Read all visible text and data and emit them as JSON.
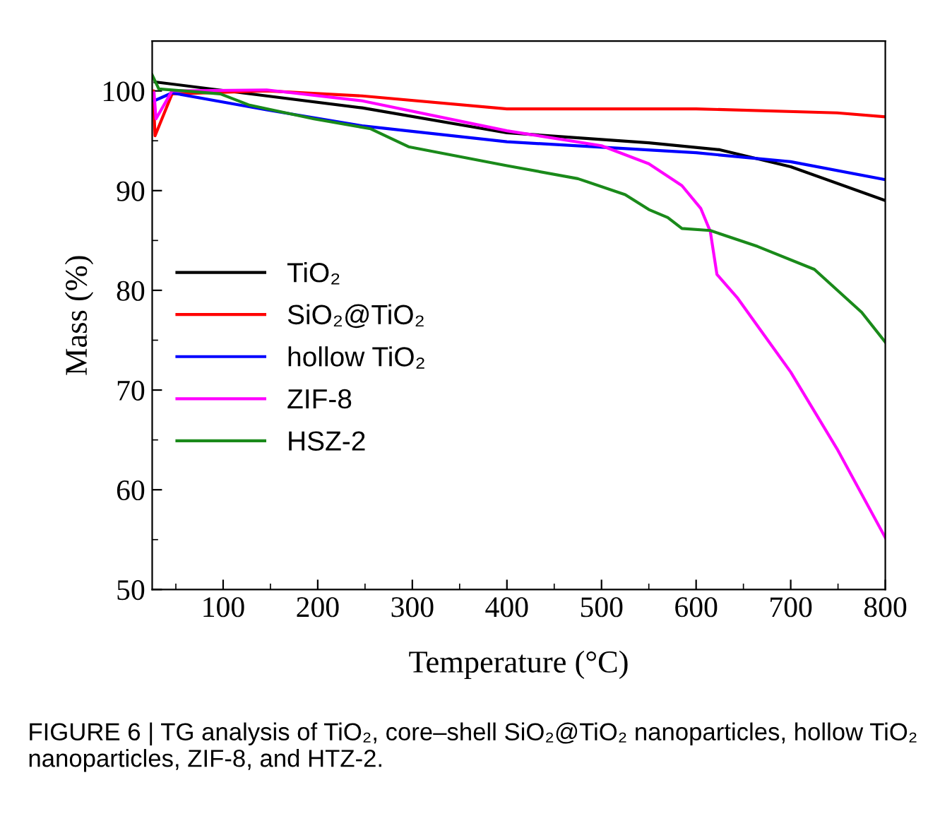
{
  "chart_data": {
    "type": "line",
    "xlabel": "Temperature (°C)",
    "ylabel": "Mass (%)",
    "xlim": [
      25,
      800
    ],
    "xticks": [
      100,
      200,
      300,
      400,
      500,
      600,
      700,
      800
    ],
    "ylim": [
      50,
      105
    ],
    "yticks": [
      50,
      60,
      70,
      80,
      90,
      100
    ],
    "grid": false,
    "legend": "left",
    "line_style": "solid",
    "marker": "none",
    "series": [
      {
        "name": "TiO₂",
        "color": "#000000",
        "x": [
          28,
          146,
          247,
          400,
          550,
          625,
          700,
          800
        ],
        "values": [
          100.9,
          99.5,
          98.3,
          95.8,
          94.8,
          94.1,
          92.4,
          89.0
        ]
      },
      {
        "name": "SiO₂@TiO₂",
        "color": "#ff0000",
        "x": [
          26,
          28,
          46,
          146,
          247,
          400,
          600,
          749,
          800
        ],
        "values": [
          100.0,
          95.5,
          99.7,
          100.0,
          99.5,
          98.2,
          98.2,
          97.8,
          97.4
        ]
      },
      {
        "name": "hollow TiO₂",
        "color": "#0000ff",
        "x": [
          27,
          46,
          146,
          247,
          400,
          600,
          700,
          800
        ],
        "values": [
          99.0,
          99.8,
          98.1,
          96.5,
          94.9,
          93.8,
          92.9,
          91.1
        ]
      },
      {
        "name": "ZIF-8",
        "color": "#ff00ff",
        "x": [
          27,
          29,
          46,
          146,
          247,
          400,
          500,
          550,
          585,
          605,
          615,
          622,
          644,
          700,
          749,
          800
        ],
        "values": [
          99.8,
          97.2,
          100.0,
          100.1,
          99.0,
          96.0,
          94.5,
          92.7,
          90.5,
          88.2,
          85.9,
          81.6,
          79.2,
          71.8,
          64.1,
          55.2
        ]
      },
      {
        "name": "HSZ-2",
        "color": "#1a8a1a",
        "x": [
          25,
          32,
          97,
          127,
          196,
          256,
          296,
          400,
          475,
          525,
          550,
          570,
          585,
          615,
          665,
          725,
          775,
          800
        ],
        "values": [
          101.6,
          100.2,
          99.7,
          98.6,
          97.2,
          96.2,
          94.4,
          92.5,
          91.2,
          89.6,
          88.1,
          87.3,
          86.2,
          86.0,
          84.4,
          82.1,
          77.8,
          74.8
        ]
      }
    ],
    "annotations": [
      "FIGURE 6 | TG analysis of TiO₂, core–shell SiO₂@TiO₂ nanoparticles, hollow TiO₂ nanoparticles, ZIF-8, and HTZ-2."
    ]
  }
}
